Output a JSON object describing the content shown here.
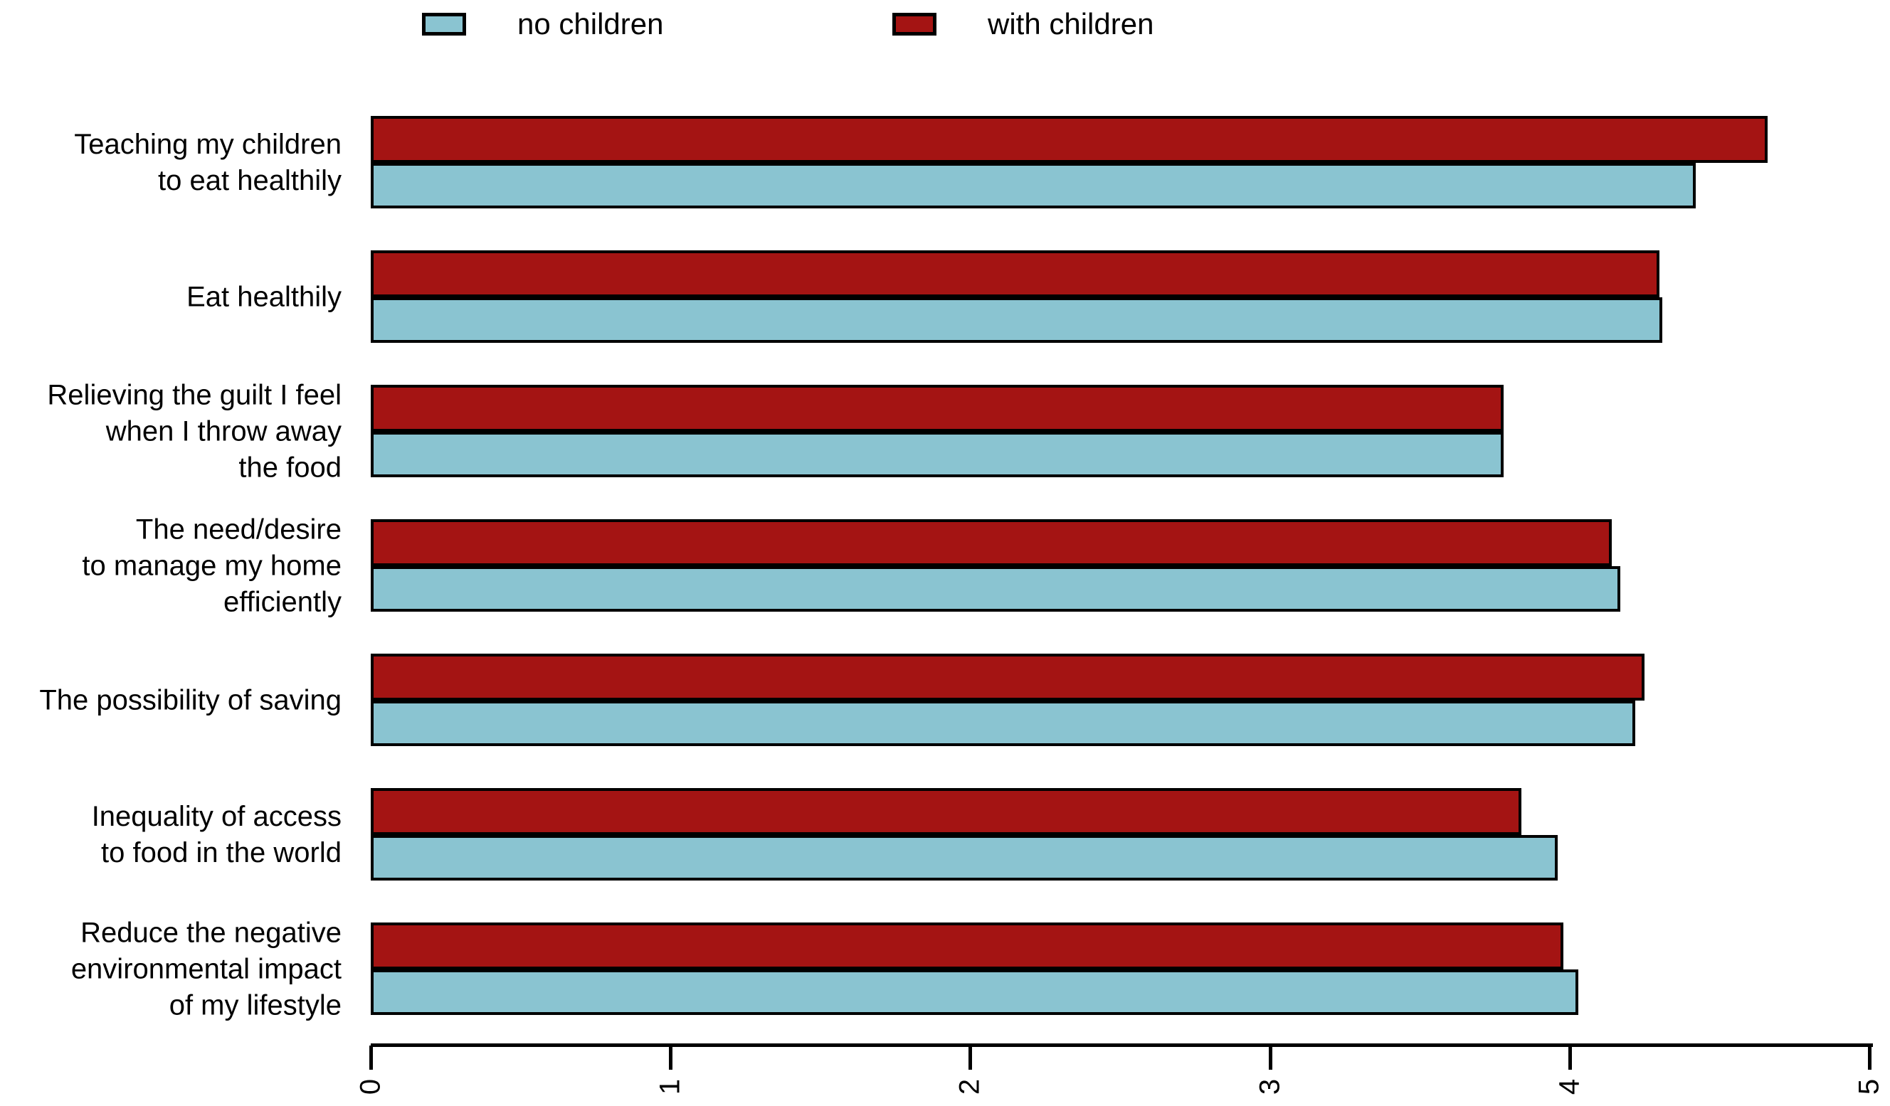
{
  "chart_data": {
    "type": "bar",
    "orientation": "horizontal",
    "title": "",
    "xlabel": "",
    "ylabel": "",
    "xlim": [
      0,
      5
    ],
    "x_ticks": [
      "0",
      "1",
      "2",
      "3",
      "4",
      "5"
    ],
    "grid": false,
    "legend_position": "top",
    "bar_order_top_to_bottom": [
      "with children",
      "no children"
    ],
    "categories": [
      {
        "lines": [
          "Teaching my children",
          "to eat healthily"
        ]
      },
      {
        "lines": [
          "Eat healthily"
        ]
      },
      {
        "lines": [
          "Relieving the guilt I feel",
          "when I throw away",
          "the food"
        ]
      },
      {
        "lines": [
          "The need/desire",
          "to manage my home",
          "efficiently"
        ]
      },
      {
        "lines": [
          "The possibility of saving"
        ]
      },
      {
        "lines": [
          "Inequality of access",
          "to food in the world"
        ]
      },
      {
        "lines": [
          "Reduce the negative",
          "environmental impact",
          "of my lifestyle"
        ]
      }
    ],
    "series": [
      {
        "name": "with children",
        "color": "#A41413",
        "values": [
          4.66,
          4.3,
          3.78,
          4.14,
          4.25,
          3.84,
          3.98
        ]
      },
      {
        "name": "no children",
        "color": "#8AC4D1",
        "values": [
          4.42,
          4.31,
          3.78,
          4.17,
          4.22,
          3.96,
          4.03
        ]
      }
    ]
  },
  "legend": {
    "items": [
      {
        "label": "no children",
        "color": "#8AC4D1"
      },
      {
        "label": "with children",
        "color": "#A41413"
      }
    ]
  }
}
